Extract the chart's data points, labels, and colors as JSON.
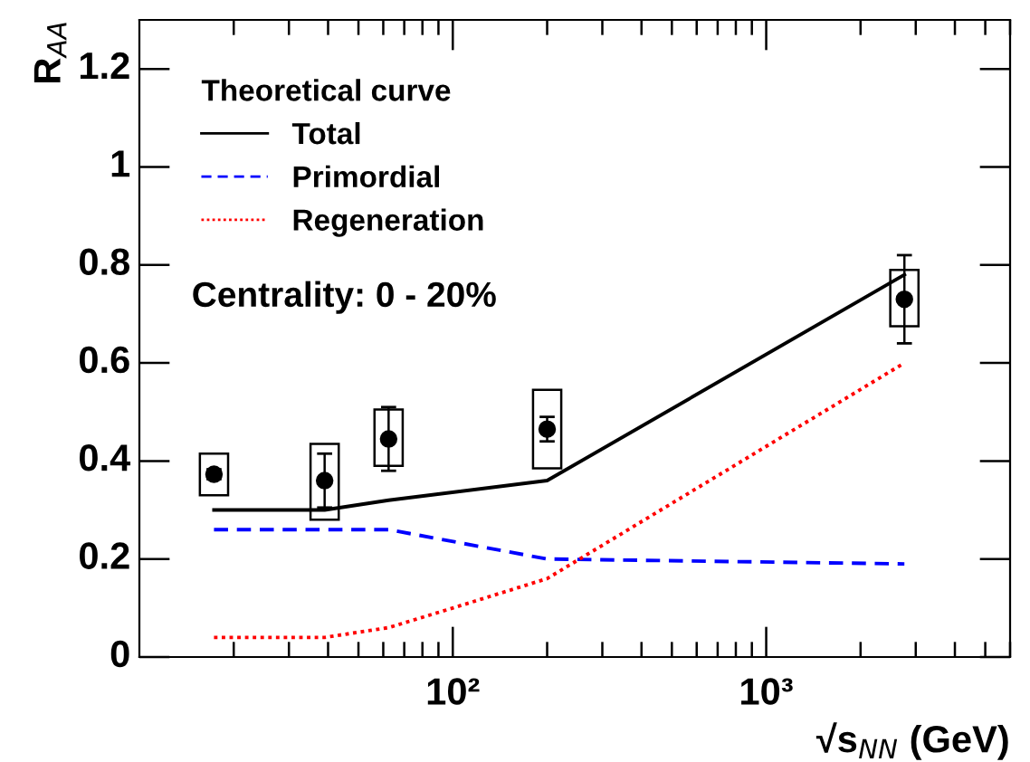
{
  "chart_data": {
    "type": "line",
    "xlabel": "√s$_{NN}$ (GeV)",
    "ylabel": "R$_{AA}$",
    "log": "x",
    "xlim": [
      10,
      6000
    ],
    "xticks": [
      {
        "value": 100,
        "label": "10²"
      },
      {
        "value": 1000,
        "label": "10³"
      }
    ],
    "ylim": [
      0,
      1.3
    ],
    "yticks": [
      0,
      0.2,
      0.4,
      0.6,
      0.8,
      1,
      1.2
    ],
    "grid": false,
    "legend": "top left",
    "legend_title": "Theoretical curve",
    "annotations": [
      "Centrality: 0 - 20%"
    ],
    "series": [
      {
        "name": "Total",
        "color": "#000000",
        "line_style": "solid",
        "x": [
          17.3,
          39,
          62.4,
          200,
          2760
        ],
        "values": [
          0.3,
          0.3,
          0.32,
          0.36,
          0.78
        ]
      },
      {
        "name": "Primordial",
        "color": "#0000ff",
        "line_style": "dashed",
        "x": [
          17.3,
          39,
          62.4,
          200,
          2760
        ],
        "values": [
          0.26,
          0.26,
          0.26,
          0.2,
          0.19
        ]
      },
      {
        "name": "Regeneration",
        "color": "#ff0000",
        "line_style": "dotted",
        "x": [
          17.3,
          39,
          62.4,
          100,
          200,
          2760
        ],
        "values": [
          0.04,
          0.04,
          0.06,
          0.1,
          0.16,
          0.6
        ]
      },
      {
        "type": "bar",
        "color": "#000000",
        "x": [
          17.3,
          39,
          62.4,
          200,
          2760
        ],
        "base": [
          0.33,
          0.28,
          0.39,
          0.385,
          0.675
        ],
        "values": [
          0.085,
          0.155,
          0.115,
          0.16,
          0.115
        ]
      },
      {
        "type": "scatter",
        "color": "#000000",
        "marker": "circle",
        "x": [
          17.3,
          39,
          62.4,
          200,
          2760
        ],
        "values": [
          0.373,
          0.36,
          0.445,
          0.465,
          0.73
        ],
        "errors": [
          0.01,
          0.055,
          0.065,
          0.025,
          0.09
        ]
      }
    ]
  }
}
